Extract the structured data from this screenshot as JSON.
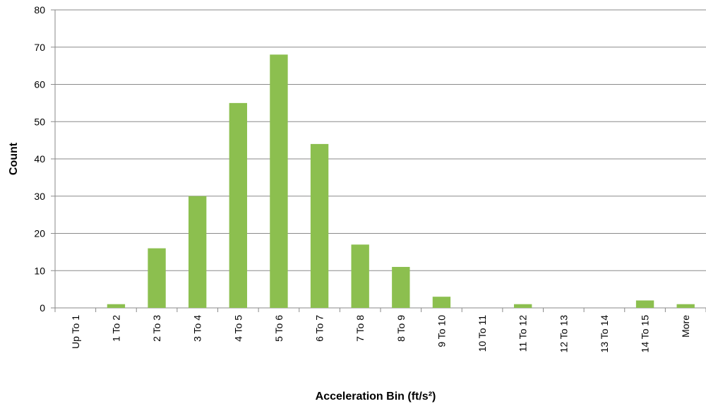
{
  "chart_data": {
    "type": "bar",
    "x_label": "Acceleration Bin (ft/s²)",
    "y_label": "Count",
    "categories": [
      "Up To 1",
      "1 To 2",
      "2 To 3",
      "3 To 4",
      "4 To 5",
      "5 To 6",
      "6 To 7",
      "7 To 8",
      "8 To 9",
      "9 To 10",
      "10 To 11",
      "11 To 12",
      "12 To 13",
      "13 To 14",
      "14 To 15",
      "More"
    ],
    "values": [
      0,
      1,
      16,
      30,
      55,
      68,
      44,
      17,
      11,
      3,
      0,
      1,
      0,
      0,
      2,
      1
    ],
    "color": "#8cbf4f",
    "ylim": [
      0,
      80
    ],
    "yticks": [
      0,
      10,
      20,
      30,
      40,
      50,
      60,
      70,
      80
    ],
    "grid": true
  }
}
